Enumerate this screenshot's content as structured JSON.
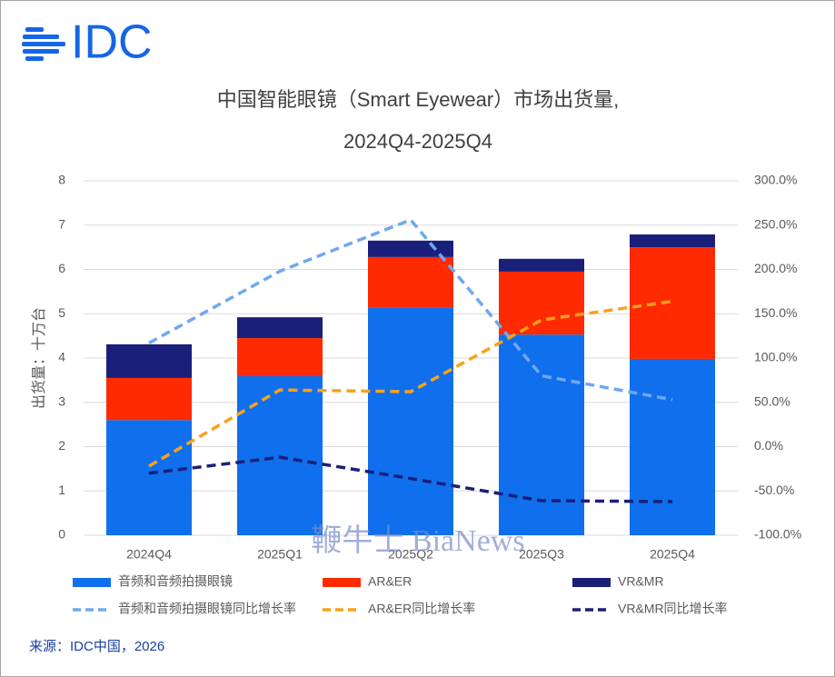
{
  "logo": "IDC",
  "chart_data": {
    "type": "bar",
    "title": "中国智能眼镜（Smart Eyewear）市场出货量,",
    "subtitle": "2024Q4-2025Q4",
    "y_label": "出货量：十万台",
    "source": "来源：IDC中国，2026",
    "watermark": "鞭牛士 BiaNews",
    "categories": [
      "2024Q4",
      "2025Q1",
      "2025Q2",
      "2025Q3",
      "2025Q4"
    ],
    "ylim": [
      0,
      8
    ],
    "yticks": [
      0,
      1,
      2,
      3,
      4,
      5,
      6,
      7,
      8
    ],
    "y2lim": [
      -100,
      300
    ],
    "y2ticks": [
      {
        "value": -100,
        "label": "-100.0%"
      },
      {
        "value": -50,
        "label": "-50.0%"
      },
      {
        "value": 0,
        "label": "0.0%"
      },
      {
        "value": 50,
        "label": "50.0%"
      },
      {
        "value": 100,
        "label": "100.0%"
      },
      {
        "value": 150,
        "label": "150.0%"
      },
      {
        "value": 200,
        "label": "200.0%"
      },
      {
        "value": 250,
        "label": "250.0%"
      },
      {
        "value": 300,
        "label": "300.0%"
      }
    ],
    "grid": true,
    "series": [
      {
        "name": "音频和音频拍摄眼镜",
        "type": "bar",
        "color": "#0f6fec",
        "values": [
          2.6,
          3.59,
          5.13,
          4.53,
          3.98
        ]
      },
      {
        "name": "AR&ER",
        "type": "bar",
        "color": "#ff2a00",
        "values": [
          0.95,
          0.86,
          1.15,
          1.42,
          2.52
        ]
      },
      {
        "name": "VR&MR",
        "type": "bar",
        "color": "#1a1f7a",
        "values": [
          0.76,
          0.47,
          0.37,
          0.29,
          0.29
        ]
      },
      {
        "name": "音频和音频拍摄眼镜同比增长率",
        "type": "line",
        "axis": "y2",
        "color": "#6fa8f2",
        "values": [
          117,
          198,
          256,
          80,
          53
        ]
      },
      {
        "name": "AR&ER同比增长率",
        "type": "line",
        "axis": "y2",
        "color": "#f7a21b",
        "values": [
          -22,
          64,
          62,
          143,
          164
        ]
      },
      {
        "name": "VR&MR同比增长率",
        "type": "line",
        "axis": "y2",
        "color": "#1a1f7a",
        "values": [
          -30,
          -12,
          -36,
          -61,
          -62
        ]
      }
    ]
  }
}
